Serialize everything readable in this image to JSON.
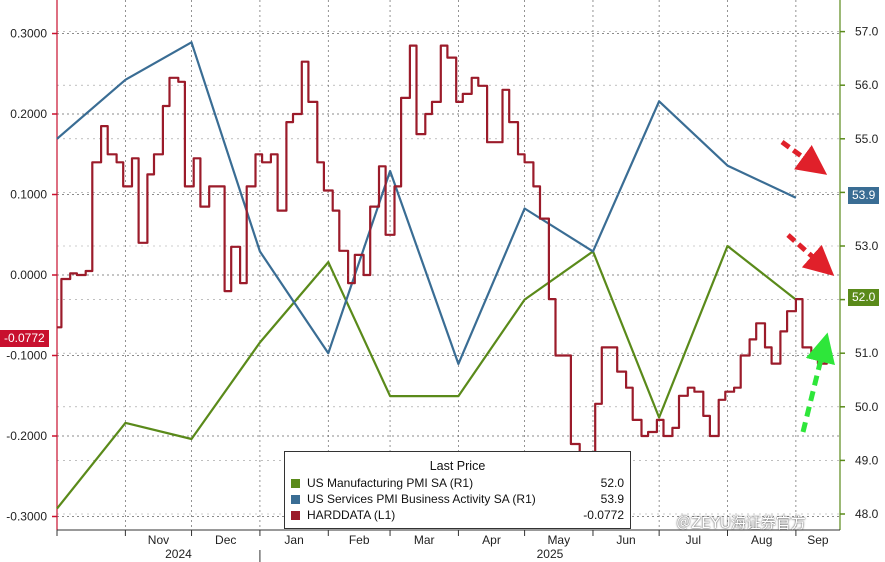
{
  "chart_data": {
    "type": "line",
    "left_axis": {
      "ticks": [
        "0.3000",
        "0.2000",
        "0.1000",
        "0.0000",
        "-0.1000",
        "-0.2000",
        "-0.3000"
      ],
      "ylim": [
        -0.3,
        0.3
      ]
    },
    "right_axis": {
      "ticks": [
        "57.0",
        "56.0",
        "55.0",
        "54.0",
        "53.0",
        "52.0",
        "51.0",
        "50.0",
        "49.0",
        "48.0"
      ],
      "ylim": [
        48.0,
        57.0
      ]
    },
    "x_month_labels": [
      "Nov",
      "Dec",
      "Jan",
      "Feb",
      "Mar",
      "Apr",
      "May",
      "Jun",
      "Jul",
      "Aug",
      "Sep"
    ],
    "x_year_labels": [
      "2024",
      "2025"
    ],
    "legend": {
      "title": "Last Price",
      "items": [
        {
          "name": "US Manufacturing PMI SA  (R1)",
          "value": "52.0",
          "color": "#5a8a1a"
        },
        {
          "name": "US Services PMI Business Activity SA  (R1)",
          "value": "53.9",
          "color": "#3a6d94"
        },
        {
          "name": "HARDDATA  (L1)",
          "value": "-0.0772",
          "color": "#9b1b2a"
        }
      ]
    },
    "badges": {
      "services": "53.9",
      "manufacturing": "52.0",
      "harddata": "-0.0772"
    },
    "series": [
      {
        "name": "US Manufacturing PMI SA  (R1)",
        "axis": "right",
        "x": [
          "2024-10-01",
          "2024-11-01",
          "2024-12-01",
          "2025-01-01",
          "2025-02-01",
          "2025-03-01",
          "2025-04-01",
          "2025-05-01",
          "2025-06-01",
          "2025-07-01",
          "2025-08-01",
          "2025-09-01"
        ],
        "values": [
          48.1,
          49.7,
          49.4,
          51.2,
          52.7,
          50.2,
          50.2,
          52.0,
          52.9,
          49.8,
          53.0,
          52.0
        ]
      },
      {
        "name": "US Services PMI Business Activity SA  (R1)",
        "axis": "right",
        "x": [
          "2024-10-01",
          "2024-11-01",
          "2024-12-01",
          "2025-01-01",
          "2025-02-01",
          "2025-03-01",
          "2025-04-01",
          "2025-05-01",
          "2025-06-01",
          "2025-07-01",
          "2025-08-01",
          "2025-09-01"
        ],
        "values": [
          55.0,
          56.1,
          56.8,
          52.9,
          51.0,
          54.4,
          50.8,
          53.7,
          52.9,
          55.7,
          54.5,
          53.9
        ]
      },
      {
        "name": "HARDDATA  (L1)",
        "axis": "left",
        "x": [
          "2024-10-01",
          "2024-10-03",
          "2024-10-07",
          "2024-10-10",
          "2024-10-14",
          "2024-10-17",
          "2024-10-21",
          "2024-10-24",
          "2024-10-28",
          "2024-10-31",
          "2024-11-04",
          "2024-11-07",
          "2024-11-11",
          "2024-11-14",
          "2024-11-18",
          "2024-11-21",
          "2024-11-25",
          "2024-11-28",
          "2024-12-02",
          "2024-12-05",
          "2024-12-09",
          "2024-12-12",
          "2024-12-16",
          "2024-12-19",
          "2024-12-23",
          "2024-12-26",
          "2024-12-30",
          "2025-01-02",
          "2025-01-06",
          "2025-01-09",
          "2025-01-13",
          "2025-01-16",
          "2025-01-20",
          "2025-01-23",
          "2025-01-27",
          "2025-01-30",
          "2025-02-03",
          "2025-02-06",
          "2025-02-10",
          "2025-02-13",
          "2025-02-17",
          "2025-02-20",
          "2025-02-24",
          "2025-02-27",
          "2025-03-03",
          "2025-03-06",
          "2025-03-10",
          "2025-03-13",
          "2025-03-17",
          "2025-03-20",
          "2025-03-24",
          "2025-03-27",
          "2025-03-31",
          "2025-04-03",
          "2025-04-07",
          "2025-04-10",
          "2025-04-14",
          "2025-04-17",
          "2025-04-21",
          "2025-04-24",
          "2025-04-28",
          "2025-05-01",
          "2025-05-05",
          "2025-05-08",
          "2025-05-12",
          "2025-05-15",
          "2025-05-19",
          "2025-05-22",
          "2025-05-26",
          "2025-05-29",
          "2025-06-02",
          "2025-06-05",
          "2025-06-09",
          "2025-06-12",
          "2025-06-16",
          "2025-06-19",
          "2025-06-23",
          "2025-06-26",
          "2025-06-30",
          "2025-07-03",
          "2025-07-07",
          "2025-07-10",
          "2025-07-14",
          "2025-07-17",
          "2025-07-21",
          "2025-07-24",
          "2025-07-28",
          "2025-07-31",
          "2025-08-04",
          "2025-08-07",
          "2025-08-11",
          "2025-08-14",
          "2025-08-18",
          "2025-08-21",
          "2025-08-25",
          "2025-08-28",
          "2025-09-01",
          "2025-09-04",
          "2025-09-08",
          "2025-09-11",
          "2025-09-15"
        ],
        "values": [
          -0.065,
          -0.005,
          0.002,
          0.0,
          0.005,
          0.14,
          0.185,
          0.15,
          0.14,
          0.11,
          0.145,
          0.04,
          0.125,
          0.15,
          0.21,
          0.245,
          0.24,
          0.11,
          0.145,
          0.085,
          0.11,
          0.11,
          -0.02,
          0.035,
          -0.01,
          0.11,
          0.15,
          0.14,
          0.15,
          0.08,
          0.19,
          0.2,
          0.265,
          0.215,
          0.14,
          0.105,
          0.08,
          0.03,
          -0.01,
          0.025,
          0.0,
          0.085,
          0.135,
          0.05,
          0.11,
          0.22,
          0.285,
          0.175,
          0.2,
          0.215,
          0.285,
          0.27,
          0.215,
          0.225,
          0.245,
          0.235,
          0.165,
          0.165,
          0.23,
          0.19,
          0.15,
          0.14,
          0.11,
          0.07,
          -0.03,
          -0.1,
          -0.1,
          -0.21,
          -0.25,
          -0.23,
          -0.16,
          -0.09,
          -0.09,
          -0.12,
          -0.14,
          -0.18,
          -0.2,
          -0.195,
          -0.18,
          -0.2,
          -0.19,
          -0.15,
          -0.14,
          -0.145,
          -0.175,
          -0.2,
          -0.155,
          -0.145,
          -0.14,
          -0.1,
          -0.08,
          -0.06,
          -0.09,
          -0.11,
          -0.07,
          -0.045,
          -0.03,
          -0.09,
          -0.1,
          -0.11,
          -0.0772
        ]
      }
    ],
    "annotations": [
      {
        "type": "dashed-arrow",
        "color": "red",
        "direction": "down-right",
        "near": "services"
      },
      {
        "type": "dashed-arrow",
        "color": "red",
        "direction": "down-right",
        "near": "manufacturing"
      },
      {
        "type": "dashed-arrow",
        "color": "green",
        "direction": "up",
        "near": "harddata"
      }
    ]
  },
  "watermark": "＠ZEYU海证券官方"
}
